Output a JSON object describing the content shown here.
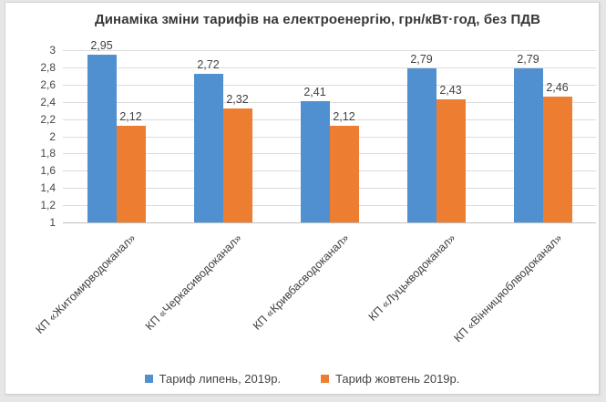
{
  "chart_data": {
    "type": "bar",
    "title": "Динаміка зміни тарифів на електроенергію, грн/кВт·год, без ПДВ",
    "categories": [
      "КП «Житомирводоканал»",
      "КП «Черкасиводоканал»",
      "КП «Кривбасводоканал»",
      "КП «Луцькводоканал»",
      "КП «Вінницяоблводоканал»"
    ],
    "series": [
      {
        "name": "Тариф липень, 2019р.",
        "color": "#5090d0",
        "values": [
          2.95,
          2.72,
          2.41,
          2.79,
          2.79
        ]
      },
      {
        "name": "Тариф жовтень 2019р.",
        "color": "#ed7d31",
        "values": [
          2.12,
          2.32,
          2.12,
          2.43,
          2.46
        ]
      }
    ],
    "value_labels": [
      [
        "2,95",
        "2,72",
        "2,41",
        "2,79",
        "2,79"
      ],
      [
        "2,12",
        "2,32",
        "2,12",
        "2,43",
        "2,46"
      ]
    ],
    "ylim": [
      1,
      3
    ],
    "ytick_step": 0.2,
    "ytick_labels": [
      "3",
      "2,8",
      "2,6",
      "2,4",
      "2,2",
      "2",
      "1,8",
      "1,6",
      "1,4",
      "1,2",
      "1"
    ],
    "decimal_separator": ",",
    "grid": true,
    "legend_position": "bottom",
    "colors": {
      "gridline": "#dcdcdc",
      "axis_line": "#bfbfbf",
      "text": "#404040",
      "card_background": "#ffffff",
      "page_background": "#e6e6e6"
    }
  }
}
